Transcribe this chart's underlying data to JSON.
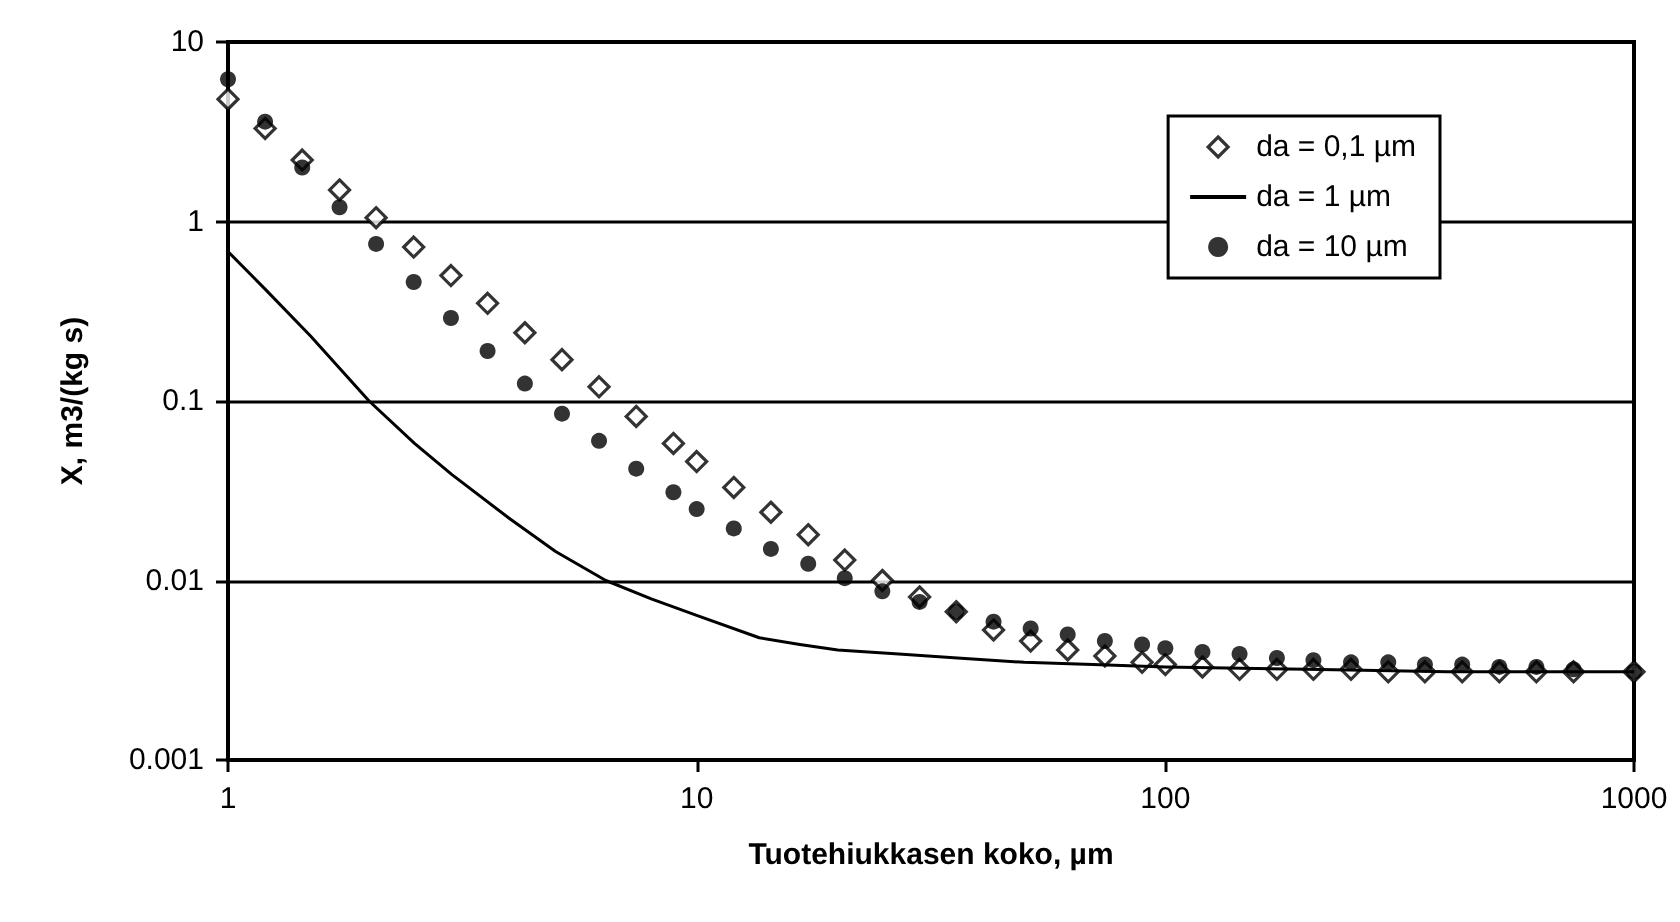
{
  "chart_data": {
    "type": "scatter",
    "xlabel": "Tuotehiukkasen koko, µm",
    "ylabel": "X, m3/(kg s)",
    "log": "xy",
    "xlim": [
      1,
      1000
    ],
    "xticks": [
      1,
      10,
      100,
      1000
    ],
    "ylim": [
      0.001,
      10
    ],
    "yticks": [
      0.001,
      0.01,
      0.1,
      1,
      10
    ],
    "grid": "y",
    "legend": "top right",
    "x": [
      1,
      1.2,
      1.44,
      1.73,
      2.07,
      2.49,
      2.99,
      3.58,
      4.3,
      5.16,
      6.19,
      7.43,
      8.92,
      10,
      12,
      14.4,
      17.3,
      20.7,
      24.9,
      29.9,
      35.8,
      43,
      51.6,
      61.9,
      74.3,
      89.2,
      100,
      120,
      144,
      173,
      207,
      249,
      299,
      358,
      430,
      516,
      619,
      743,
      1000
    ],
    "series": [
      {
        "name": "da = 0,1 µm",
        "marker": "diamond",
        "color": "#000000",
        "values": [
          4.8,
          3.3,
          2.2,
          1.5,
          1.05,
          0.72,
          0.5,
          0.35,
          0.24,
          0.17,
          0.12,
          0.082,
          0.058,
          0.046,
          0.033,
          0.024,
          0.018,
          0.013,
          0.01,
          0.0081,
          0.0067,
          0.0053,
          0.0046,
          0.0041,
          0.0038,
          0.0035,
          0.0034,
          0.0033,
          0.0032,
          0.0032,
          0.0032,
          0.0032,
          0.0031,
          0.0031,
          0.0031,
          0.0031,
          0.0031,
          0.0031,
          0.0031
        ]
      },
      {
        "name": "da = 1 µm",
        "type": "line",
        "marker": "none",
        "line_style": "solid",
        "color": "#000000",
        "x": [
          1,
          1.2,
          1.5,
          2,
          2.5,
          3,
          4,
          5,
          6.4,
          8,
          10,
          13.6,
          16.6,
          20,
          27,
          36,
          50,
          70,
          100,
          200,
          400,
          1000
        ],
        "values": [
          0.68,
          0.42,
          0.23,
          0.1,
          0.058,
          0.039,
          0.022,
          0.0145,
          0.01,
          0.0079,
          0.0064,
          0.0048,
          0.0044,
          0.0041,
          0.0039,
          0.0037,
          0.0035,
          0.0034,
          0.0033,
          0.0032,
          0.0031,
          0.0031
        ]
      },
      {
        "name": "da = 10 µm",
        "marker": "circle",
        "color": "#000000",
        "values": [
          6.2,
          3.6,
          2.0,
          1.2,
          0.75,
          0.46,
          0.29,
          0.19,
          0.125,
          0.085,
          0.06,
          0.042,
          0.031,
          0.025,
          0.0195,
          0.015,
          0.0124,
          0.0103,
          0.0087,
          0.0076,
          0.0067,
          0.0059,
          0.0054,
          0.005,
          0.0046,
          0.0044,
          0.0042,
          0.004,
          0.0039,
          0.0037,
          0.0036,
          0.0035,
          0.0035,
          0.0034,
          0.0034,
          0.0033,
          0.0033,
          0.0032,
          0.0031
        ]
      }
    ]
  }
}
